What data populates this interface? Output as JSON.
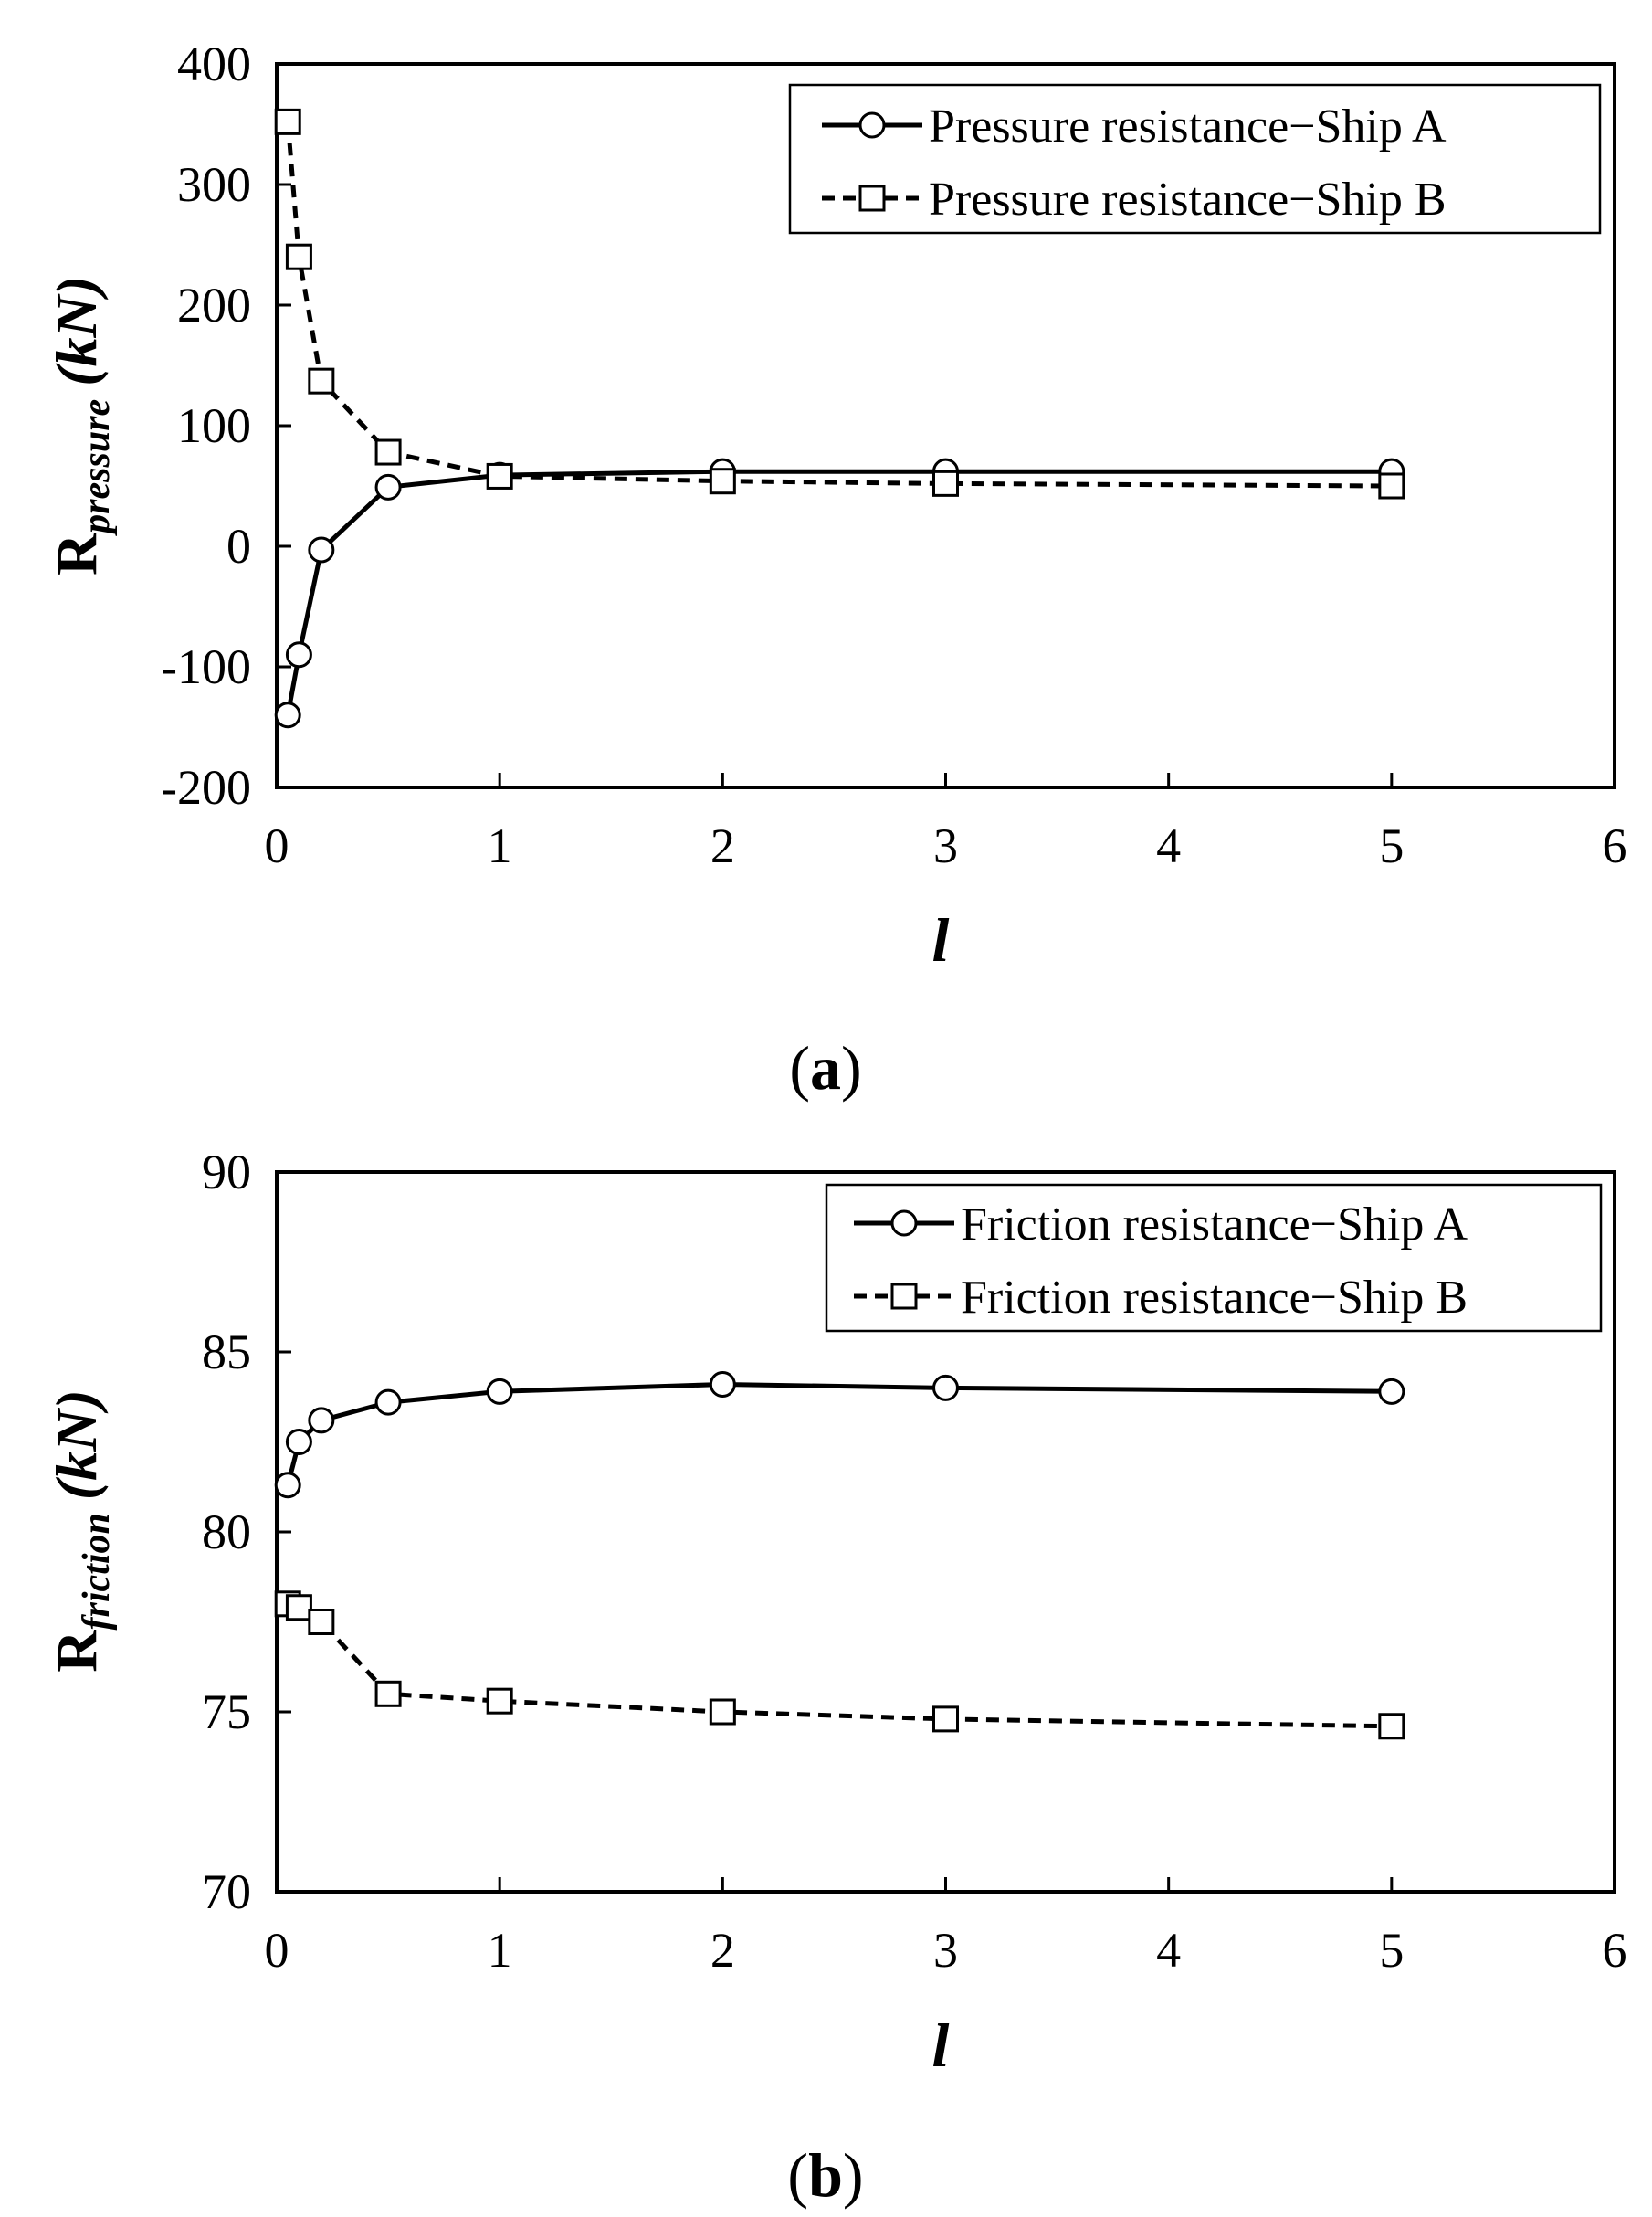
{
  "chart_data": [
    {
      "type": "line",
      "panel_label": "a",
      "title": "",
      "xlabel": "l",
      "ylabel_main": "R",
      "ylabel_sub": "pressure",
      "ylabel_unit": "(kN)",
      "xlim": [
        0,
        6
      ],
      "ylim": [
        -200,
        400
      ],
      "xticks": [
        0,
        1,
        2,
        3,
        4,
        5,
        6
      ],
      "yticks": [
        -200,
        -100,
        0,
        100,
        200,
        300,
        400
      ],
      "grid": false,
      "legend_position": "top-right",
      "x": [
        0.05,
        0.1,
        0.2,
        0.5,
        1,
        2,
        3,
        5
      ],
      "series": [
        {
          "name": "Pressure resistance−Ship A",
          "marker": "circle",
          "line_style": "solid",
          "values": [
            -140,
            -90,
            -3,
            49,
            59,
            62,
            62,
            62
          ]
        },
        {
          "name": "Pressure resistance−Ship B",
          "marker": "square",
          "line_style": "dashed",
          "values": [
            352,
            240,
            137,
            78,
            58,
            54,
            52,
            50
          ]
        }
      ]
    },
    {
      "type": "line",
      "panel_label": "b",
      "title": "",
      "xlabel": "l",
      "ylabel_main": "R",
      "ylabel_sub": "friction",
      "ylabel_unit": "(kN)",
      "xlim": [
        0,
        6
      ],
      "ylim": [
        70,
        90
      ],
      "xticks": [
        0,
        1,
        2,
        3,
        4,
        5,
        6
      ],
      "yticks": [
        70,
        75,
        80,
        85,
        90
      ],
      "grid": false,
      "legend_position": "top-right",
      "x": [
        0.05,
        0.1,
        0.2,
        0.5,
        1,
        2,
        3,
        5
      ],
      "series": [
        {
          "name": "Friction resistance−Ship A",
          "marker": "circle",
          "line_style": "solid",
          "values": [
            81.3,
            82.5,
            83.1,
            83.6,
            83.9,
            84.1,
            84.0,
            83.9
          ]
        },
        {
          "name": "Friction resistance−Ship B",
          "marker": "square",
          "line_style": "dashed",
          "values": [
            78.0,
            77.9,
            77.5,
            75.5,
            75.3,
            75.0,
            74.8,
            74.6
          ]
        }
      ]
    }
  ]
}
